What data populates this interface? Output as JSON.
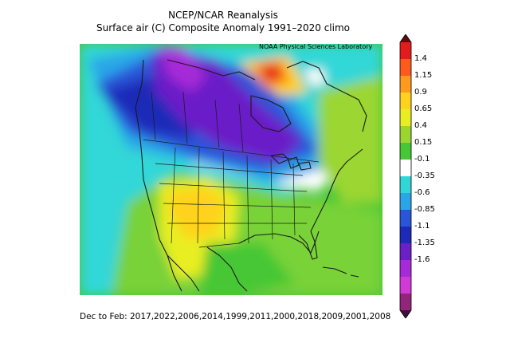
{
  "header": {
    "title": "NCEP/NCAR Reanalysis",
    "subtitle": "Surface air (C) Composite Anomaly 1991–2020 climo"
  },
  "credit": "NOAA Physical Sciences Laboratory",
  "footer": "Dec to Feb: 2017,2022,2006,2014,1999,2011,2000,2018,2009,2001,2008",
  "colorbar": {
    "labels": [
      "1.4",
      "1.15",
      "0.9",
      "0.65",
      "0.4",
      "0.15",
      "-0.1",
      "-0.35",
      "-0.6",
      "-0.85",
      "-1.1",
      "-1.35",
      "-1.6"
    ],
    "colors": [
      "#5c0d0d",
      "#e41b1b",
      "#ff5a1e",
      "#ff9a1e",
      "#ffd21e",
      "#e8ee22",
      "#9bd630",
      "#46c735",
      "#ffffff",
      "#30d7d7",
      "#2aa6e8",
      "#2a55d8",
      "#1d2ab8",
      "#6a1fc8",
      "#a62ad8",
      "#d23ad8",
      "#92247a",
      "#3e0e3e"
    ]
  },
  "map": {
    "region": "North America",
    "anomaly_pattern": "cold northwest Canada and northern Plains/Great Lakes; warm southwest US, Mexico and northeast Canada"
  }
}
